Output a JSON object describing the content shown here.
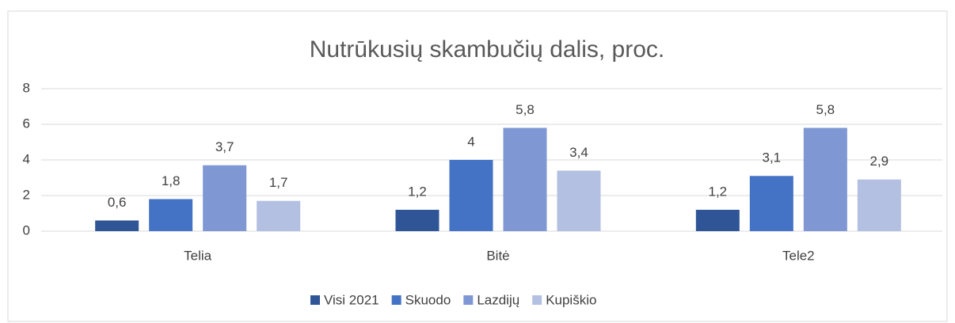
{
  "chart_data": {
    "type": "bar",
    "title": "Nutrūkusių skambučių dalis, proc.",
    "categories": [
      "Telia",
      "Bitė",
      "Tele2"
    ],
    "series": [
      {
        "name": "Visi 2021",
        "color": "#2f5597",
        "values": [
          0.6,
          1.2,
          1.2
        ],
        "value_labels": [
          "0,6",
          "1,2",
          "1,2"
        ]
      },
      {
        "name": "Skuodo",
        "color": "#4472c4",
        "values": [
          1.8,
          4,
          3.1
        ],
        "value_labels": [
          "1,8",
          "4",
          "3,1"
        ]
      },
      {
        "name": "Lazdijų",
        "color": "#7f98d4",
        "values": [
          3.7,
          5.8,
          5.8
        ],
        "value_labels": [
          "3,7",
          "5,8",
          "5,8"
        ]
      },
      {
        "name": "Kupiškio",
        "color": "#b4c0e2",
        "values": [
          1.7,
          3.4,
          2.9
        ],
        "value_labels": [
          "1,7",
          "3,4",
          "2,9"
        ]
      }
    ],
    "ylim": [
      0,
      8
    ],
    "yticks": [
      0,
      2,
      4,
      6,
      8
    ],
    "grid": true,
    "legend": "bottom"
  }
}
